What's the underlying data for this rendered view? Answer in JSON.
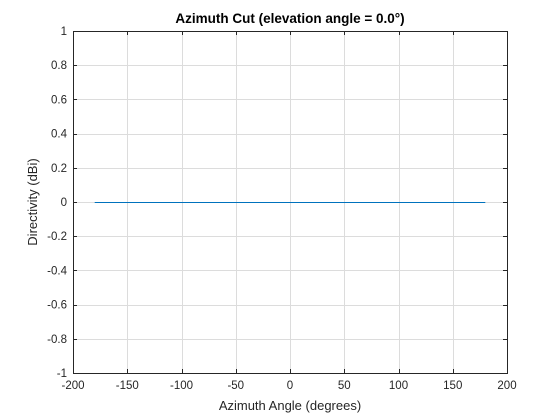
{
  "chart_data": {
    "type": "line",
    "title": "Azimuth Cut (elevation angle = 0.0°)",
    "xlabel": "Azimuth Angle (degrees)",
    "ylabel": "Directivity (dBi)",
    "xlim": [
      -200,
      200
    ],
    "ylim": [
      -1,
      1
    ],
    "xticks": [
      -200,
      -150,
      -100,
      -50,
      0,
      50,
      100,
      150,
      200
    ],
    "xtick_labels": [
      "-200",
      "-150",
      "-100",
      "-50",
      "0",
      "50",
      "100",
      "150",
      "200"
    ],
    "yticks": [
      -1,
      -0.8,
      -0.6,
      -0.4,
      -0.2,
      0,
      0.2,
      0.4,
      0.6,
      0.8,
      1
    ],
    "ytick_labels": [
      "-1",
      "-0.8",
      "-0.6",
      "-0.4",
      "-0.2",
      "0",
      "0.2",
      "0.4",
      "0.6",
      "0.8",
      "1"
    ],
    "grid": true,
    "series": [
      {
        "color": "#0072bd",
        "x": [
          -180,
          180
        ],
        "y": [
          0,
          0
        ]
      }
    ]
  }
}
